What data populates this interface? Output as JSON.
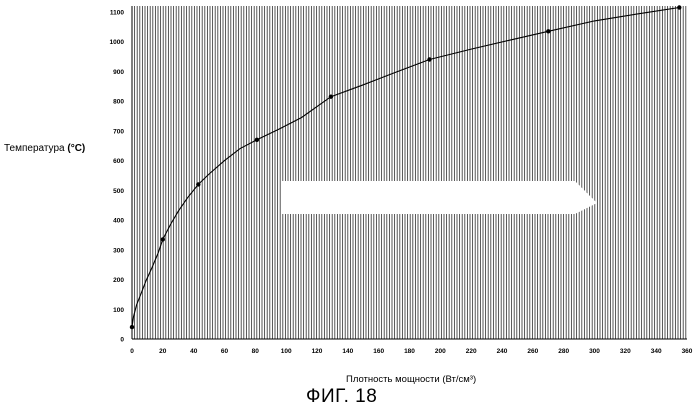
{
  "chart_data": {
    "type": "line",
    "ylabel": "Температура",
    "ylabel_unit": "(°C)",
    "xlabel": "Плотность мощности (Вт/см³)",
    "caption": "ФИГ. 18",
    "x_ticks": [
      0,
      20,
      40,
      60,
      80,
      100,
      120,
      140,
      160,
      180,
      200,
      220,
      240,
      260,
      280,
      300,
      320,
      340,
      360
    ],
    "y_ticks": [
      0,
      100,
      200,
      300,
      400,
      500,
      600,
      700,
      800,
      900,
      1000,
      1100
    ],
    "xlim": [
      0,
      360
    ],
    "ylim": [
      0,
      1120
    ],
    "grid": true,
    "series": [
      {
        "marker_x": [
          0,
          20,
          43,
          81,
          129,
          193,
          270,
          355
        ],
        "marker_y": [
          40,
          335,
          520,
          670,
          815,
          940,
          1035,
          1115
        ],
        "x": [
          0,
          1,
          3,
          6,
          9,
          13,
          17,
          20,
          25,
          30,
          36,
          43,
          50,
          60,
          70,
          81,
          95,
          110,
          129,
          150,
          170,
          193,
          220,
          245,
          270,
          300,
          330,
          355
        ],
        "y": [
          40,
          75,
          115,
          155,
          195,
          240,
          290,
          335,
          385,
          430,
          475,
          520,
          555,
          600,
          640,
          670,
          705,
          745,
          815,
          855,
          895,
          940,
          975,
          1005,
          1035,
          1070,
          1095,
          1115
        ]
      }
    ]
  }
}
